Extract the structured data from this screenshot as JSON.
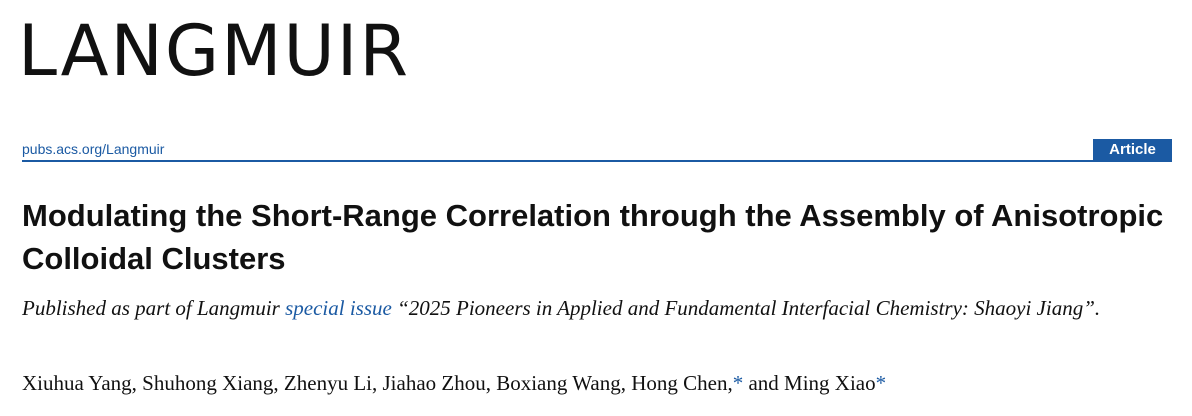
{
  "header": {
    "journal": "LANGMUIR",
    "url": "pubs.acs.org/Langmuir",
    "article_type": "Article"
  },
  "article": {
    "title": "Modulating the Short-Range Correlation through the Assembly of Anisotropic Colloidal Clusters",
    "note": {
      "prefix": "Published as part of Langmuir ",
      "link": "special issue",
      "suffix": " “2025 Pioneers in Applied and Fundamental Interfacial Chemistry: Shaoyi Jiang”."
    },
    "byline": [
      "Xiuhua Yang, Shuhong Xiang, Zhenyu Li, Jiahao Zhou, Boxiang Wang, Hong Chen,",
      "*",
      " and Ming Xiao",
      "*"
    ]
  }
}
